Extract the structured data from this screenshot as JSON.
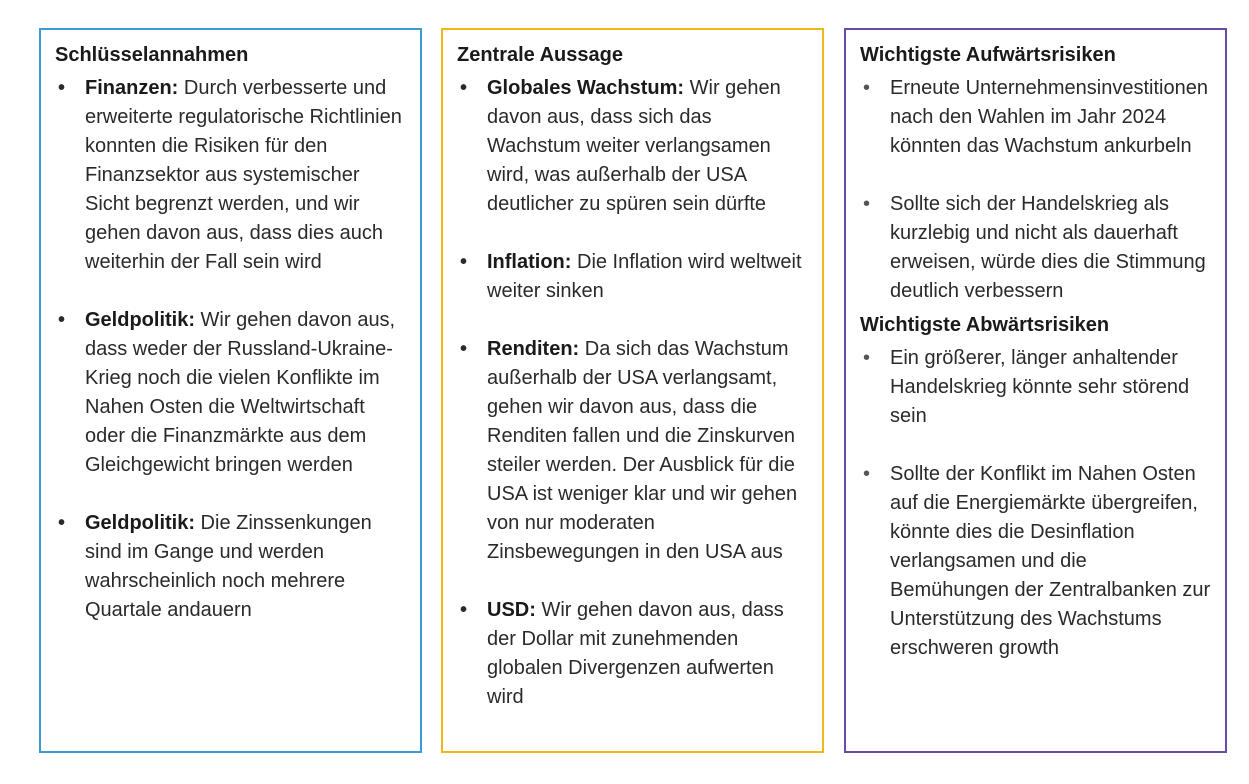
{
  "left": {
    "title": "Schlüsselannahmen",
    "items": [
      {
        "term": "Finanzen:",
        "text": " Durch verbesserte und erweiterte regulatorische Richtlinien konnten die Risiken für den Finanzsektor aus systemischer Sicht begrenzt werden, und wir gehen davon aus, dass dies auch weiterhin der Fall sein wird"
      },
      {
        "term": "Geldpolitik:",
        "text": " Wir gehen davon aus, dass weder der Russland-Ukraine-Krieg noch die vielen Konflikte im Nahen Osten die Weltwirtschaft oder die Finanzmärkte aus dem Gleichgewicht bringen werden"
      },
      {
        "term": "Geldpolitik:",
        "text": " Die Zinssenkungen sind im Gange und werden wahrscheinlich noch mehrere Quartale andauern"
      }
    ]
  },
  "middle": {
    "title": "Zentrale Aussage",
    "items": [
      {
        "term": "Globales Wachstum:",
        "text": " Wir gehen davon aus, dass sich das Wachstum weiter verlangsamen wird, was außerhalb der USA deutlicher zu spüren sein dürfte"
      },
      {
        "term": "Inflation:",
        "text": " Die Inflation wird weltweit weiter sinken"
      },
      {
        "term": "Renditen:",
        "text": " Da sich das Wachstum außerhalb der USA verlangsamt, gehen wir davon aus, dass die Renditen fallen und die Zinskurven steiler werden. Der Ausblick für die USA ist weniger klar und wir gehen von nur moderaten Zinsbewegungen in den USA aus"
      },
      {
        "term": "USD:",
        "text": " Wir gehen davon aus, dass der Dollar mit zunehmenden globalen Divergenzen aufwerten wird"
      }
    ]
  },
  "right": {
    "upside_title": "Wichtigste Aufwärtsrisiken",
    "upside_items": [
      "Erneute Unternehmensinvesti­tionen nach den Wahlen im Jahr 2024 könnten das Wachstum ankurbeln",
      "Sollte sich der Handelskrieg als kurzlebig und nicht als dauerhaft erweisen, würde dies die Stimmung deutlich verbessern"
    ],
    "downside_title": "Wichtigste Abwärtsrisiken",
    "downside_items": [
      "Ein größerer, länger anhaltender Handelskrieg könnte sehr störend sein",
      "Sollte der Konflikt im Nahen Osten auf die Energiemärkte übergreifen, könnte dies die Desinflation verlangsamen und die Bemühungen der Zentral­banken zur Unterstützung des Wachstums erschweren growth"
    ]
  },
  "colors": {
    "left_border": "#3a9bd5",
    "middle_border": "#f2b713",
    "right_border": "#6a4aa5"
  }
}
